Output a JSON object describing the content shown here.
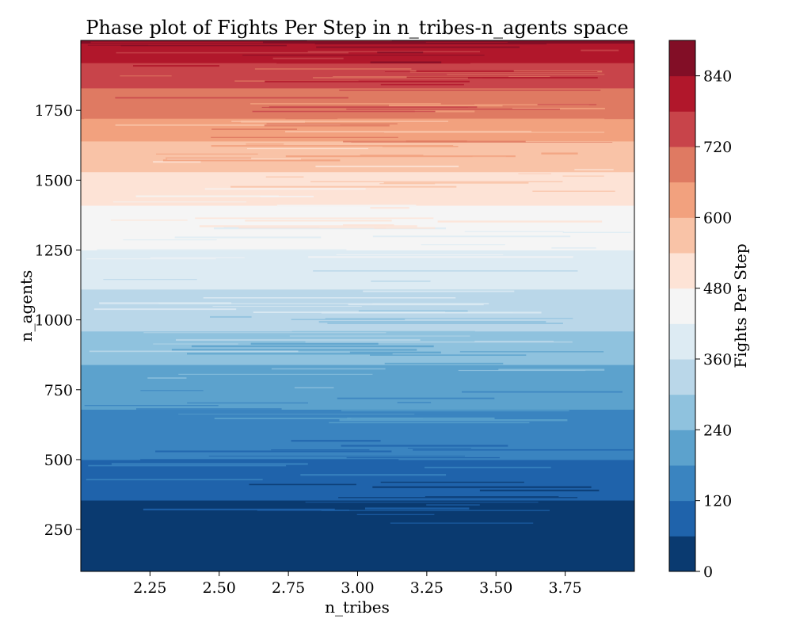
{
  "chart_data": {
    "type": "heatmap",
    "title": "Phase plot of Fights Per Step in n_tribes-n_agents space",
    "xlabel": "n_tribes",
    "ylabel": "n_agents",
    "xlim": [
      2.0,
      4.0
    ],
    "ylim": [
      100,
      2000
    ],
    "x_ticks": [
      2.25,
      2.5,
      2.75,
      3.0,
      3.25,
      3.5,
      3.75
    ],
    "x_tick_labels": [
      "2.25",
      "2.50",
      "2.75",
      "3.00",
      "3.25",
      "3.50",
      "3.75"
    ],
    "y_ticks": [
      250,
      500,
      750,
      1000,
      1250,
      1500,
      1750
    ],
    "y_tick_labels": [
      "250",
      "500",
      "750",
      "1000",
      "1250",
      "1500",
      "1750"
    ],
    "colorbar": {
      "label": "Fights Per Step",
      "levels": [
        0,
        60,
        120,
        180,
        240,
        300,
        360,
        420,
        480,
        540,
        600,
        660,
        720,
        780,
        840,
        900
      ],
      "colors": [
        "#0a3a70",
        "#1f63ab",
        "#3a84c0",
        "#5ca2cd",
        "#8fc2de",
        "#bad7e9",
        "#ddebf3",
        "#f5f5f5",
        "#fde3d6",
        "#f9c3a7",
        "#f2a17e",
        "#df7a62",
        "#c8444a",
        "#b1172b",
        "#820e26"
      ],
      "ticks": [
        0,
        120,
        240,
        360,
        480,
        600,
        720,
        840
      ],
      "tick_labels": [
        "0",
        "120",
        "240",
        "360",
        "480",
        "600",
        "720",
        "840"
      ]
    },
    "band_boundaries_n_agents": [
      {
        "level": 0,
        "n_agents": 100
      },
      {
        "level": 60,
        "n_agents": 355
      },
      {
        "level": 120,
        "n_agents": 500
      },
      {
        "level": 180,
        "n_agents": 680
      },
      {
        "level": 240,
        "n_agents": 840
      },
      {
        "level": 300,
        "n_agents": 960
      },
      {
        "level": 360,
        "n_agents": 1110
      },
      {
        "level": 420,
        "n_agents": 1250
      },
      {
        "level": 480,
        "n_agents": 1410
      },
      {
        "level": 540,
        "n_agents": 1530
      },
      {
        "level": 600,
        "n_agents": 1640
      },
      {
        "level": 660,
        "n_agents": 1720
      },
      {
        "level": 720,
        "n_agents": 1830
      },
      {
        "level": 780,
        "n_agents": 1920
      },
      {
        "level": 840,
        "n_agents": 1990
      },
      {
        "level": 900,
        "n_agents": 2000
      }
    ]
  }
}
